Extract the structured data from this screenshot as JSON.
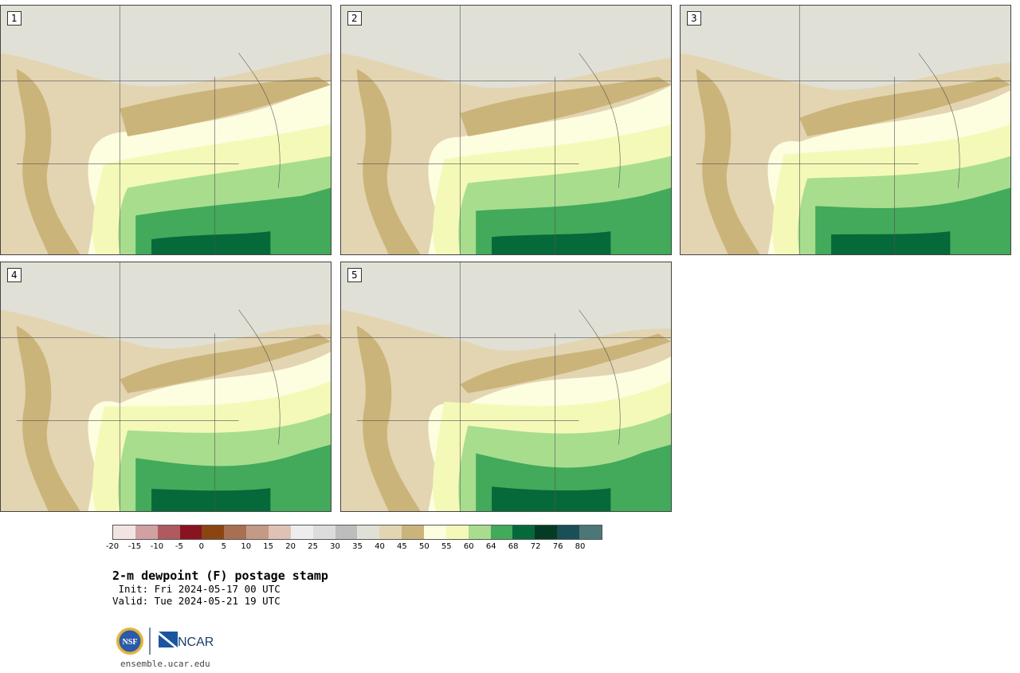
{
  "panels": [
    {
      "label": "1"
    },
    {
      "label": "2"
    },
    {
      "label": "3"
    },
    {
      "label": "4"
    },
    {
      "label": "5"
    }
  ],
  "colorbar": {
    "colors": [
      "#f3e4e4",
      "#d1a0a2",
      "#b05a60",
      "#8a1320",
      "#8b4513",
      "#a87050",
      "#c39a85",
      "#dfc2b5",
      "#ededed",
      "#dcdcdc",
      "#bdbdbd",
      "#e0e0d6",
      "#e3d5b2",
      "#cbb47a",
      "#fdfde0",
      "#f4f9b8",
      "#a8dd8e",
      "#42aa5a",
      "#05693a",
      "#053a24",
      "#1b4f57",
      "#4d7676"
    ],
    "ticks": [
      "-20",
      "-15",
      "-10",
      "-5",
      "0",
      "5",
      "10",
      "15",
      "20",
      "25",
      "30",
      "35",
      "40",
      "45",
      "50",
      "55",
      "60",
      "64",
      "68",
      "72",
      "76",
      "80"
    ]
  },
  "title": "2-m dewpoint (F) postage stamp",
  "init": " Init: Fri 2024-05-17 00 UTC",
  "valid": "Valid: Tue 2024-05-21 19 UTC",
  "logo": {
    "nsf": "NSF",
    "ncar": "NCAR"
  },
  "url": "ensemble.ucar.edu"
}
